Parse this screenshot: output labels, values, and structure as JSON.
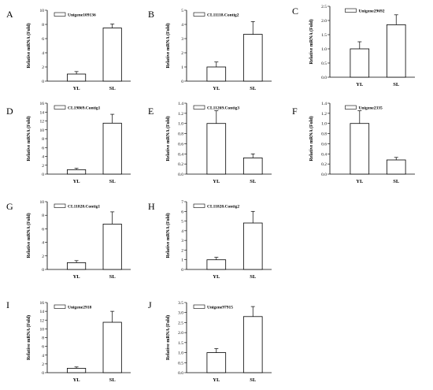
{
  "chart_data": [
    {
      "type": "bar",
      "panel": "A",
      "legend": "Unigene109136",
      "ylabel": "Relative mRNA (Fold)",
      "categories": [
        "YL",
        "SL"
      ],
      "values": [
        1.0,
        7.5
      ],
      "errors": [
        0.35,
        0.55
      ],
      "ylim": [
        0,
        10
      ],
      "yticks": [
        "0",
        "2",
        "4",
        "6",
        "8",
        "10"
      ],
      "legend_position": "top-left"
    },
    {
      "type": "bar",
      "panel": "B",
      "legend": "CL11118.Contig2",
      "ylabel": "Relative mRNA (Fold)",
      "categories": [
        "YL",
        "SL"
      ],
      "values": [
        1.0,
        3.3
      ],
      "errors": [
        0.35,
        0.9
      ],
      "ylim": [
        0,
        5
      ],
      "yticks": [
        "0",
        "1",
        "2",
        "3",
        "4",
        "5"
      ],
      "legend_position": "top-left"
    },
    {
      "type": "bar",
      "panel": "C",
      "legend": "Unigene29692",
      "ylabel": "Relative mRNA (Fold)",
      "categories": [
        "YL",
        "SL"
      ],
      "values": [
        1.0,
        1.85
      ],
      "errors": [
        0.25,
        0.35
      ],
      "ylim": [
        0,
        2.5
      ],
      "yticks": [
        "0.0",
        "0.5",
        "1.0",
        "1.5",
        "2.0",
        "2.5"
      ],
      "legend_position": "top-center"
    },
    {
      "type": "bar",
      "panel": "D",
      "legend": "CL19869.Contig1",
      "ylabel": "Relative mRNA (Fold)",
      "categories": [
        "YL",
        "SL"
      ],
      "values": [
        1.0,
        11.5
      ],
      "errors": [
        0.3,
        2.0
      ],
      "ylim": [
        0,
        16
      ],
      "yticks": [
        "0",
        "2",
        "4",
        "6",
        "8",
        "10",
        "12",
        "14",
        "16"
      ],
      "legend_position": "top-left"
    },
    {
      "type": "bar",
      "panel": "E",
      "legend": "CL11269.Contig3",
      "ylabel": "Relative mRNA (Fold)",
      "categories": [
        "YL",
        "SL"
      ],
      "values": [
        1.0,
        0.32
      ],
      "errors": [
        0.25,
        0.08
      ],
      "ylim": [
        0,
        1.4
      ],
      "yticks": [
        "0.0",
        "0.2",
        "0.4",
        "0.6",
        "0.8",
        "1.0",
        "1.2",
        "1.4"
      ],
      "legend_position": "top-left"
    },
    {
      "type": "bar",
      "panel": "F",
      "legend": "Unigene2335",
      "ylabel": "Relative mRNA (Fold)",
      "categories": [
        "YL",
        "SL"
      ],
      "values": [
        1.0,
        0.28
      ],
      "errors": [
        0.25,
        0.05
      ],
      "ylim": [
        0,
        1.4
      ],
      "yticks": [
        "0.0",
        "0.2",
        "0.4",
        "0.6",
        "0.8",
        "1.0",
        "1.2",
        "1.4"
      ],
      "legend_position": "top-center"
    },
    {
      "type": "bar",
      "panel": "G",
      "legend": "CL11828.Contig1",
      "ylabel": "Relative mRNA (Fold)",
      "categories": [
        "YL",
        "SL"
      ],
      "values": [
        1.0,
        6.7
      ],
      "errors": [
        0.3,
        1.8
      ],
      "ylim": [
        0,
        10
      ],
      "yticks": [
        "0",
        "2",
        "4",
        "6",
        "8",
        "10"
      ],
      "legend_position": "top-left"
    },
    {
      "type": "bar",
      "panel": "H",
      "legend": "CL11828.Contig2",
      "ylabel": "Relative mRNA (Fold)",
      "categories": [
        "YL",
        "SL"
      ],
      "values": [
        1.0,
        4.8
      ],
      "errors": [
        0.25,
        1.2
      ],
      "ylim": [
        0,
        7
      ],
      "yticks": [
        "0",
        "1",
        "2",
        "3",
        "4",
        "5",
        "6",
        "7"
      ],
      "legend_position": "top-left"
    },
    {
      "type": "bar",
      "panel": "I",
      "legend": "Unigene2918",
      "ylabel": "Relative mRNA (Fold)",
      "categories": [
        "YL",
        "SL"
      ],
      "values": [
        1.0,
        11.5
      ],
      "errors": [
        0.3,
        2.5
      ],
      "ylim": [
        0,
        16
      ],
      "yticks": [
        "0",
        "2",
        "4",
        "6",
        "8",
        "10",
        "12",
        "14",
        "16"
      ],
      "legend_position": "top-left"
    },
    {
      "type": "bar",
      "panel": "J",
      "legend": "Unigene97915",
      "ylabel": "Relative mRNA (Fold)",
      "categories": [
        "YL",
        "SL"
      ],
      "values": [
        1.0,
        2.8
      ],
      "errors": [
        0.2,
        0.5
      ],
      "ylim": [
        0,
        3.5
      ],
      "yticks": [
        "0.0",
        "0.5",
        "1.0",
        "1.5",
        "2.0",
        "2.5",
        "3.0",
        "3.5"
      ],
      "legend_position": "top-left"
    }
  ]
}
